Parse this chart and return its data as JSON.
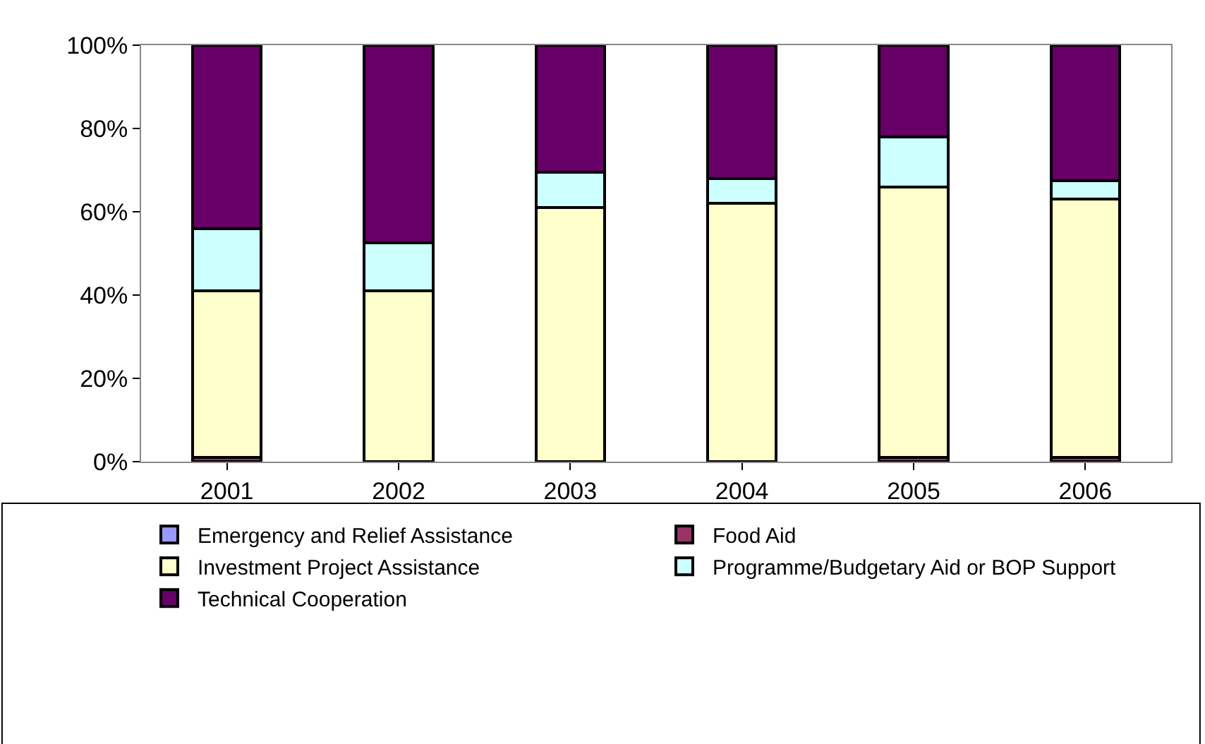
{
  "chart_data": {
    "type": "bar",
    "stacked": true,
    "categories": [
      "2001",
      "2002",
      "2003",
      "2004",
      "2005",
      "2006"
    ],
    "series": [
      {
        "name": "Emergency and Relief Assistance",
        "color": "#9999ff",
        "values": [
          0,
          0,
          0,
          0,
          0,
          0
        ]
      },
      {
        "name": "Food Aid",
        "color": "#993366",
        "values": [
          1,
          0,
          0,
          0,
          1,
          1
        ]
      },
      {
        "name": "Investment Project Assistance",
        "color": "#ffffcc",
        "values": [
          40,
          41,
          61,
          62,
          65,
          62
        ]
      },
      {
        "name": "Programme/Budgetary Aid or BOP Support",
        "color": "#ccffff",
        "values": [
          15,
          11.5,
          8.5,
          6,
          12,
          4.5
        ]
      },
      {
        "name": "Technical Cooperation",
        "color": "#660066",
        "values": [
          44,
          47.5,
          30.5,
          32,
          22,
          32.5
        ]
      }
    ],
    "ylim": [
      0,
      100
    ],
    "yticks": [
      {
        "value": 0,
        "label": "0%"
      },
      {
        "value": 20,
        "label": "20%"
      },
      {
        "value": 40,
        "label": "40%"
      },
      {
        "value": 60,
        "label": "60%"
      },
      {
        "value": 80,
        "label": "80%"
      },
      {
        "value": 100,
        "label": "100%"
      }
    ],
    "grid": false,
    "legend": "bottom"
  }
}
